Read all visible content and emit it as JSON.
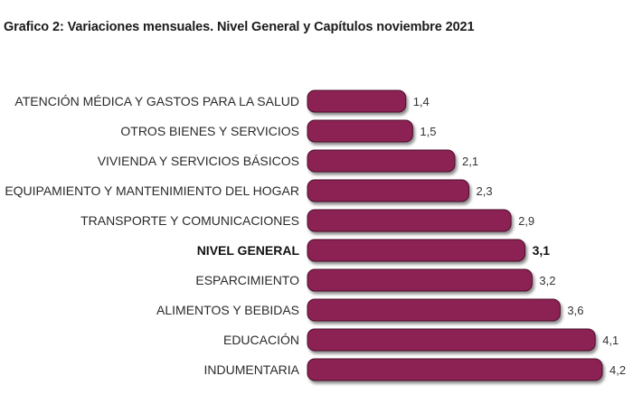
{
  "chart_data": {
    "type": "bar",
    "orientation": "horizontal",
    "title": "Grafico 2: Variaciones mensuales.  Nivel General y Capítulos  noviembre  2021",
    "xlabel": "",
    "ylabel": "",
    "xlim": [
      0,
      4.2
    ],
    "categories": [
      "ATENCIÓN MÉDICA Y GASTOS PARA LA SALUD",
      "OTROS BIENES Y SERVICIOS",
      "VIVIENDA Y SERVICIOS BÁSICOS",
      "EQUIPAMIENTO Y MANTENIMIENTO DEL HOGAR",
      "TRANSPORTE Y COMUNICACIONES",
      "NIVEL GENERAL",
      "ESPARCIMIENTO",
      "ALIMENTOS Y BEBIDAS",
      "EDUCACIÓN",
      "INDUMENTARIA"
    ],
    "values": [
      1.4,
      1.5,
      2.1,
      2.3,
      2.9,
      3.1,
      3.2,
      3.6,
      4.1,
      4.2
    ],
    "value_labels": [
      "1,4",
      "1,5",
      "2,1",
      "2,3",
      "2,9",
      "3,1",
      "3,2",
      "3,6",
      "4,1",
      "4,2"
    ],
    "highlight_category": "NIVEL GENERAL",
    "bar_color": "#8c2252",
    "bar_edge_color": "#4e0f2c",
    "grid": false,
    "legend": "none"
  }
}
